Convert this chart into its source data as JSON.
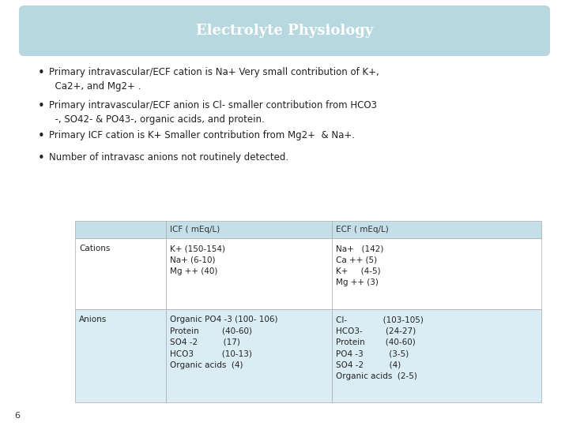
{
  "title": "Electrolyte Physiology",
  "title_bg": "#b8d8e0",
  "title_color": "#ffffff",
  "bg_color": "#ffffff",
  "bullet_points": [
    "Primary intravascular/ECF cation is Na+ Very small contribution of K+,\n  Ca2+, and Mg2+ .",
    "Primary intravascular/ECF anion is Cl- smaller contribution from HCO3\n  -, SO42- & PO43-, organic acids, and protein.",
    "Primary ICF cation is K+ Smaller contribution from Mg2+  & Na+.",
    "Number of intravasc anions not routinely detected."
  ],
  "table_header_bg": "#c5dfe8",
  "table_row1_bg": "#daedf4",
  "table_row2_bg": "#daedf4",
  "table_border_color": "#aaaaaa",
  "col1_header": "ICF ( mEq/L)",
  "col2_header": "ECF ( mEq/L)",
  "row1_label": "Cations",
  "row1_icf": "K+ (150-154)\nNa+ (6-10)\nMg ++ (40)",
  "row1_ecf": "Na+   (142)\nCa ++ (5)\nK+     (4-5)\nMg ++ (3)",
  "row2_label": "Anions",
  "row2_icf": "Organic PO4 -3 (100- 106)\nProtein         (40-60)\nSO4 -2          (17)\nHCO3           (10-13)\nOrganic acids  (4)",
  "row2_ecf": "Cl-              (103-105)\nHCO3-         (24-27)\nProtein        (40-60)\nPO4 -3          (3-5)\nSO4 -2          (4)\nOrganic acids  (2-5)",
  "footer_text": "6",
  "font_size_title": 13,
  "font_size_bullet": 8.5,
  "font_size_table": 7.5,
  "font_size_footer": 8
}
